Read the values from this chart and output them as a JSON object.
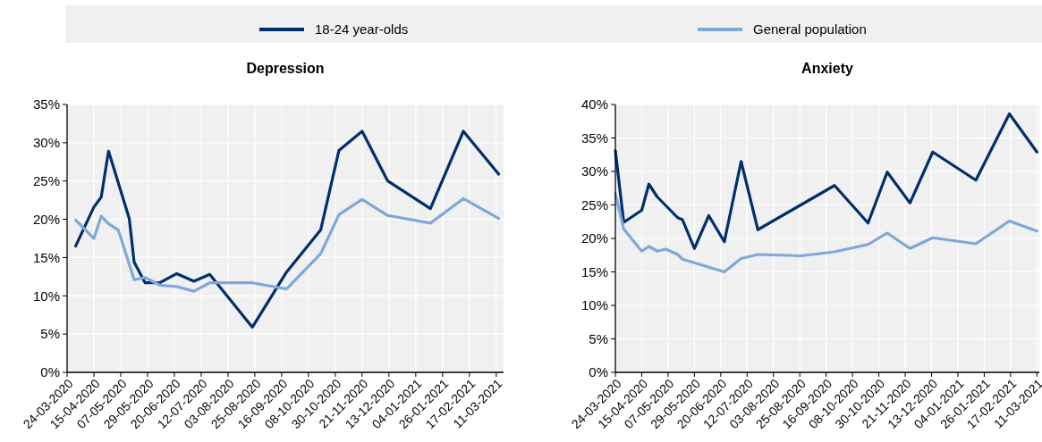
{
  "chart_data": [
    {
      "type": "line",
      "title": "Depression",
      "grid": true,
      "legend": "top",
      "xlim": [
        "2020-03-24",
        "2021-03-17"
      ],
      "ylim": [
        0,
        35
      ],
      "yticks": [
        {
          "value": 0,
          "label": "0%"
        },
        {
          "value": 5,
          "label": "5%"
        },
        {
          "value": 10,
          "label": "10%"
        },
        {
          "value": 15,
          "label": "15%"
        },
        {
          "value": 20,
          "label": "20%"
        },
        {
          "value": 25,
          "label": "25%"
        },
        {
          "value": 30,
          "label": "30%"
        },
        {
          "value": 35,
          "label": "35%"
        }
      ],
      "xticks": [
        {
          "value": "2020-03-24",
          "label": "24-03-2020"
        },
        {
          "value": "2020-04-15",
          "label": "15-04-2020"
        },
        {
          "value": "2020-05-07",
          "label": "07-05-2020"
        },
        {
          "value": "2020-05-29",
          "label": "29-05-2020"
        },
        {
          "value": "2020-06-20",
          "label": "20-06-2020"
        },
        {
          "value": "2020-07-12",
          "label": "12-07-2020"
        },
        {
          "value": "2020-08-03",
          "label": "03-08-2020"
        },
        {
          "value": "2020-08-25",
          "label": "25-08-2020"
        },
        {
          "value": "2020-09-16",
          "label": "16-09-2020"
        },
        {
          "value": "2020-10-08",
          "label": "08-10-2020"
        },
        {
          "value": "2020-10-30",
          "label": "30-10-2020"
        },
        {
          "value": "2020-11-21",
          "label": "21-11-2020"
        },
        {
          "value": "2020-12-13",
          "label": "13-12-2020"
        },
        {
          "value": "2021-01-04",
          "label": "04-01-2021"
        },
        {
          "value": "2021-01-26",
          "label": "26-01-2021"
        },
        {
          "value": "2021-02-17",
          "label": "17-02-2021"
        },
        {
          "value": "2021-03-11",
          "label": "11-03-2021"
        }
      ],
      "series": [
        {
          "name": "18-24 year-olds",
          "color": "#002f6c",
          "x": [
            "2020-03-31",
            "2020-04-15",
            "2020-04-21",
            "2020-04-27",
            "2020-05-14",
            "2020-05-18",
            "2020-05-27",
            "2020-06-08",
            "2020-06-22",
            "2020-07-06",
            "2020-07-19",
            "2020-08-23",
            "2020-09-20",
            "2020-10-18",
            "2020-11-02",
            "2020-11-21",
            "2020-12-12",
            "2021-01-16",
            "2021-02-12",
            "2021-03-13"
          ],
          "values": [
            16.5,
            21.6,
            22.9,
            28.9,
            20.1,
            14.4,
            11.7,
            11.7,
            12.9,
            11.9,
            12.8,
            5.9,
            13.1,
            18.6,
            29.0,
            31.5,
            25.0,
            21.4,
            31.5,
            25.9
          ]
        },
        {
          "name": "General population",
          "color": "#7fa8d9",
          "x": [
            "2020-03-31",
            "2020-04-15",
            "2020-04-21",
            "2020-04-27",
            "2020-05-05",
            "2020-05-18",
            "2020-05-27",
            "2020-06-08",
            "2020-06-22",
            "2020-07-06",
            "2020-07-19",
            "2020-08-23",
            "2020-09-20",
            "2020-10-18",
            "2020-11-02",
            "2020-11-21",
            "2020-12-12",
            "2021-01-16",
            "2021-02-12",
            "2021-03-13"
          ],
          "values": [
            19.9,
            17.5,
            20.4,
            19.4,
            18.6,
            12.1,
            12.4,
            11.4,
            11.2,
            10.6,
            11.7,
            11.7,
            10.9,
            15.5,
            20.6,
            22.6,
            20.5,
            19.5,
            22.7,
            20.1
          ]
        }
      ]
    },
    {
      "type": "line",
      "title": "Anxiety",
      "grid": true,
      "xlim": [
        "2020-03-24",
        "2021-03-13"
      ],
      "ylim": [
        0,
        40
      ],
      "yticks": [
        {
          "value": 0,
          "label": "0%"
        },
        {
          "value": 5,
          "label": "5%"
        },
        {
          "value": 10,
          "label": "10%"
        },
        {
          "value": 15,
          "label": "15%"
        },
        {
          "value": 20,
          "label": "20%"
        },
        {
          "value": 25,
          "label": "25%"
        },
        {
          "value": 30,
          "label": "30%"
        },
        {
          "value": 35,
          "label": "35%"
        },
        {
          "value": 40,
          "label": "40%"
        }
      ],
      "xticks": [
        {
          "value": "2020-03-24",
          "label": "24-03-2020"
        },
        {
          "value": "2020-04-15",
          "label": "15-04-2020"
        },
        {
          "value": "2020-05-07",
          "label": "07-05-2020"
        },
        {
          "value": "2020-05-29",
          "label": "29-05-2020"
        },
        {
          "value": "2020-06-20",
          "label": "20-06-2020"
        },
        {
          "value": "2020-07-12",
          "label": "12-07-2020"
        },
        {
          "value": "2020-08-03",
          "label": "03-08-2020"
        },
        {
          "value": "2020-08-25",
          "label": "25-08-2020"
        },
        {
          "value": "2020-09-16",
          "label": "16-09-2020"
        },
        {
          "value": "2020-10-08",
          "label": "08-10-2020"
        },
        {
          "value": "2020-10-30",
          "label": "30-10-2020"
        },
        {
          "value": "2020-11-21",
          "label": "21-11-2020"
        },
        {
          "value": "2020-12-13",
          "label": "13-12-2020"
        },
        {
          "value": "2021-01-04",
          "label": "04-01-2021"
        },
        {
          "value": "2021-01-26",
          "label": "26-01-2021"
        },
        {
          "value": "2021-02-17",
          "label": "17-02-2021"
        },
        {
          "value": "2021-03-11",
          "label": "11-03-2021"
        }
      ],
      "series": [
        {
          "color": "#002f6c",
          "x": [
            "2020-03-24",
            "2020-03-31",
            "2020-04-15",
            "2020-04-21",
            "2020-04-28",
            "2020-05-15",
            "2020-05-19",
            "2020-05-29",
            "2020-06-10",
            "2020-06-23",
            "2020-07-07",
            "2020-07-21",
            "2020-09-23",
            "2020-10-21",
            "2020-11-06",
            "2020-11-25",
            "2020-12-14",
            "2021-01-19",
            "2021-02-16",
            "2021-03-11"
          ],
          "values": [
            33.1,
            22.4,
            24.2,
            28.1,
            26.2,
            23.1,
            22.8,
            18.5,
            23.4,
            19.5,
            31.5,
            21.3,
            27.9,
            22.3,
            29.9,
            25.3,
            32.9,
            28.7,
            38.6,
            32.9
          ]
        },
        {
          "color": "#7fa8d9",
          "x": [
            "2020-03-24",
            "2020-03-31",
            "2020-04-15",
            "2020-04-21",
            "2020-04-28",
            "2020-05-05",
            "2020-05-15",
            "2020-05-19",
            "2020-06-23",
            "2020-07-07",
            "2020-07-21",
            "2020-08-26",
            "2020-09-23",
            "2020-10-21",
            "2020-11-06",
            "2020-11-25",
            "2020-12-14",
            "2021-01-19",
            "2021-02-16",
            "2021-03-11"
          ],
          "values": [
            26.7,
            21.4,
            18.1,
            18.8,
            18.1,
            18.4,
            17.6,
            16.9,
            15.0,
            17.0,
            17.6,
            17.4,
            18.0,
            19.1,
            20.8,
            18.5,
            20.1,
            19.2,
            22.6,
            21.1
          ]
        }
      ]
    }
  ]
}
